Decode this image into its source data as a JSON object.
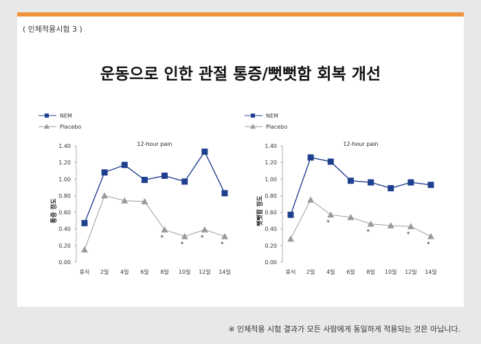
{
  "slide": {
    "tag": "( 인체적용시험 3 )",
    "headline": "운동으로 인한 관절 통증/뻣뻣함 회복 개선",
    "footnote": "※ 인체적용 시험 결과가 모든 사람에게 동일하게 적용되는 것은 아닙니다."
  },
  "colors": {
    "accent": "#f0913c",
    "nem": "#1f3f8f",
    "placebo": "#9a9a9a"
  },
  "chart_data": [
    {
      "type": "line",
      "title": "12-hour pain",
      "ylabel": "통증 정도",
      "ylim": [
        0,
        1.4
      ],
      "yticks": [
        "0.00",
        "0.20",
        "0.40",
        "0.60",
        "0.80",
        "1.00",
        "1.20",
        "1.40"
      ],
      "categories": [
        "휴식",
        "2일",
        "4일",
        "6일",
        "8일",
        "10일",
        "12일",
        "14일"
      ],
      "series": [
        {
          "name": "NEM",
          "values": [
            0.47,
            1.08,
            1.17,
            0.99,
            1.04,
            0.97,
            1.33,
            0.83
          ]
        },
        {
          "name": "Placebo",
          "values": [
            0.15,
            0.8,
            0.74,
            0.73,
            0.39,
            0.31,
            0.39,
            0.31
          ]
        }
      ],
      "significance": [
        "",
        "",
        "",
        "",
        "*",
        "*",
        "*",
        "*"
      ]
    },
    {
      "type": "line",
      "title": "12-hour pain",
      "ylabel": "뻣뻣함 정도",
      "ylim": [
        0,
        1.4
      ],
      "yticks": [
        "0.00",
        "0.20",
        "0.40",
        "0.60",
        "0.80",
        "1.00",
        "1.20",
        "1.40"
      ],
      "categories": [
        "휴식",
        "2일",
        "4일",
        "6일",
        "8일",
        "10일",
        "12일",
        "14일"
      ],
      "series": [
        {
          "name": "NEM",
          "values": [
            0.57,
            1.26,
            1.21,
            0.98,
            0.96,
            0.89,
            0.96,
            0.93
          ]
        },
        {
          "name": "Placebo",
          "values": [
            0.28,
            0.75,
            0.57,
            0.54,
            0.46,
            0.44,
            0.43,
            0.31
          ]
        }
      ],
      "significance": [
        "",
        "",
        "*",
        "",
        "*",
        "",
        "*",
        "*"
      ]
    }
  ]
}
